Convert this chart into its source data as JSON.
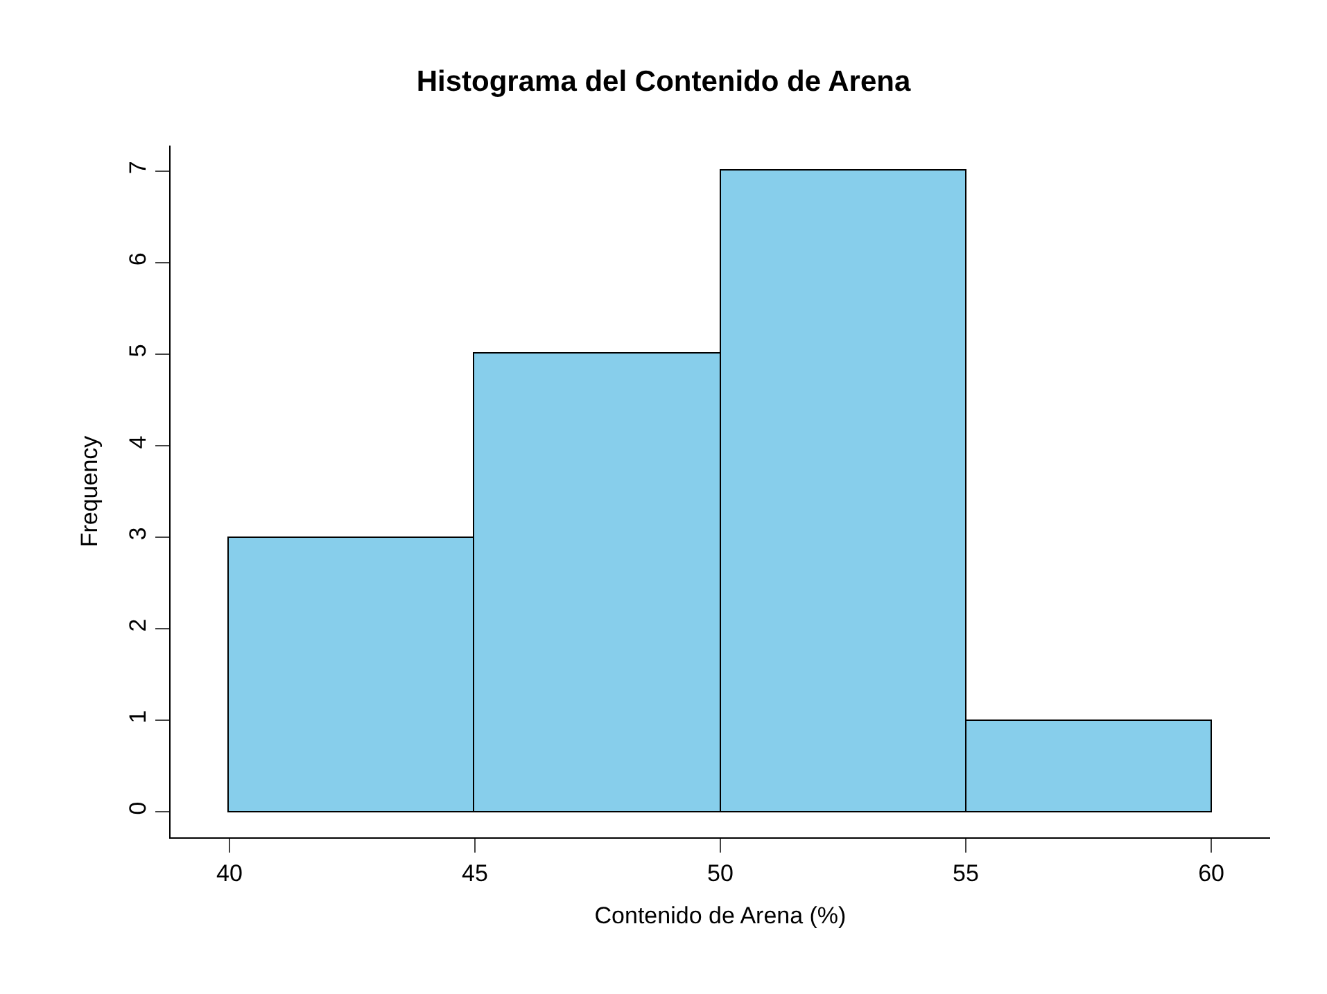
{
  "chart_data": {
    "type": "histogram",
    "title": "Histograma del Contenido de Arena",
    "xlabel": "Contenido de Arena (%)",
    "ylabel": "Frequency",
    "bins": [
      40,
      45,
      50,
      55,
      60
    ],
    "values": [
      3,
      5,
      7,
      1
    ],
    "color": "#87ceeb",
    "xlim": [
      38.8,
      61.2
    ],
    "xticks": [
      40,
      45,
      50,
      55,
      60
    ],
    "ylim": [
      -0.28,
      7.28
    ],
    "yticks": [
      0,
      1,
      2,
      3,
      4,
      5,
      6,
      7
    ]
  }
}
